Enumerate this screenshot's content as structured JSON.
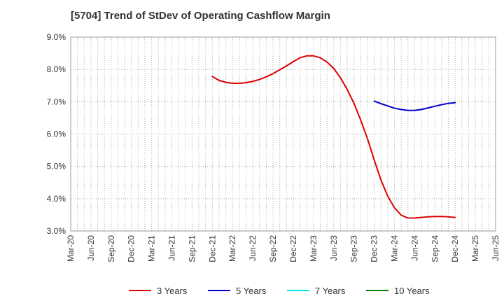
{
  "title": "[5704]  Trend of StDev of Operating Cashflow Margin",
  "chart_data": {
    "type": "line",
    "title": "[5704]  Trend of StDev of Operating Cashflow Margin",
    "xlabel": "",
    "ylabel": "",
    "x_tick_labels": [
      "Mar-20",
      "Jun-20",
      "Sep-20",
      "Dec-20",
      "Mar-21",
      "Jun-21",
      "Sep-21",
      "Dec-21",
      "Mar-22",
      "Jun-22",
      "Sep-22",
      "Dec-22",
      "Mar-23",
      "Jun-23",
      "Sep-23",
      "Dec-23",
      "Mar-24",
      "Jun-24",
      "Sep-24",
      "Dec-24",
      "Mar-25",
      "Jun-25"
    ],
    "y_tick_labels": [
      "3.0%",
      "4.0%",
      "5.0%",
      "6.0%",
      "7.0%",
      "8.0%",
      "9.0%"
    ],
    "ylim": [
      3.0,
      9.0
    ],
    "grid": true,
    "legend_position": "bottom",
    "series": [
      {
        "name": "3 Years",
        "color": "#dd0000",
        "points": [
          [
            "Dec-21",
            7.78
          ],
          [
            "Jan-22",
            7.66
          ],
          [
            "Feb-22",
            7.6
          ],
          [
            "Mar-22",
            7.57
          ],
          [
            "Apr-22",
            7.57
          ],
          [
            "May-22",
            7.59
          ],
          [
            "Jun-22",
            7.63
          ],
          [
            "Jul-22",
            7.69
          ],
          [
            "Aug-22",
            7.77
          ],
          [
            "Sep-22",
            7.87
          ],
          [
            "Oct-22",
            7.99
          ],
          [
            "Nov-22",
            8.11
          ],
          [
            "Dec-22",
            8.24
          ],
          [
            "Jan-23",
            8.36
          ],
          [
            "Feb-23",
            8.42
          ],
          [
            "Mar-23",
            8.42
          ],
          [
            "Apr-23",
            8.36
          ],
          [
            "May-23",
            8.23
          ],
          [
            "Jun-23",
            8.03
          ],
          [
            "Jul-23",
            7.74
          ],
          [
            "Aug-23",
            7.38
          ],
          [
            "Sep-23",
            6.95
          ],
          [
            "Oct-23",
            6.43
          ],
          [
            "Nov-23",
            5.86
          ],
          [
            "Dec-23",
            5.2
          ],
          [
            "Jan-24",
            4.58
          ],
          [
            "Feb-24",
            4.08
          ],
          [
            "Mar-24",
            3.72
          ],
          [
            "Apr-24",
            3.49
          ],
          [
            "May-24",
            3.4
          ],
          [
            "Jun-24",
            3.4
          ],
          [
            "Jul-24",
            3.42
          ],
          [
            "Aug-24",
            3.44
          ],
          [
            "Sep-24",
            3.45
          ],
          [
            "Oct-24",
            3.45
          ],
          [
            "Nov-24",
            3.44
          ],
          [
            "Dec-24",
            3.42
          ]
        ]
      },
      {
        "name": "5 Years",
        "color": "#0000cc",
        "points": [
          [
            "Dec-23",
            7.02
          ],
          [
            "Jan-24",
            6.94
          ],
          [
            "Feb-24",
            6.87
          ],
          [
            "Mar-24",
            6.8
          ],
          [
            "Apr-24",
            6.76
          ],
          [
            "May-24",
            6.73
          ],
          [
            "Jun-24",
            6.73
          ],
          [
            "Jul-24",
            6.76
          ],
          [
            "Aug-24",
            6.81
          ],
          [
            "Sep-24",
            6.86
          ],
          [
            "Oct-24",
            6.91
          ],
          [
            "Nov-24",
            6.95
          ],
          [
            "Dec-24",
            6.97
          ]
        ]
      },
      {
        "name": "7 Years",
        "color": "#00e5ee",
        "points": []
      },
      {
        "name": "10 Years",
        "color": "#008000",
        "points": []
      }
    ]
  }
}
